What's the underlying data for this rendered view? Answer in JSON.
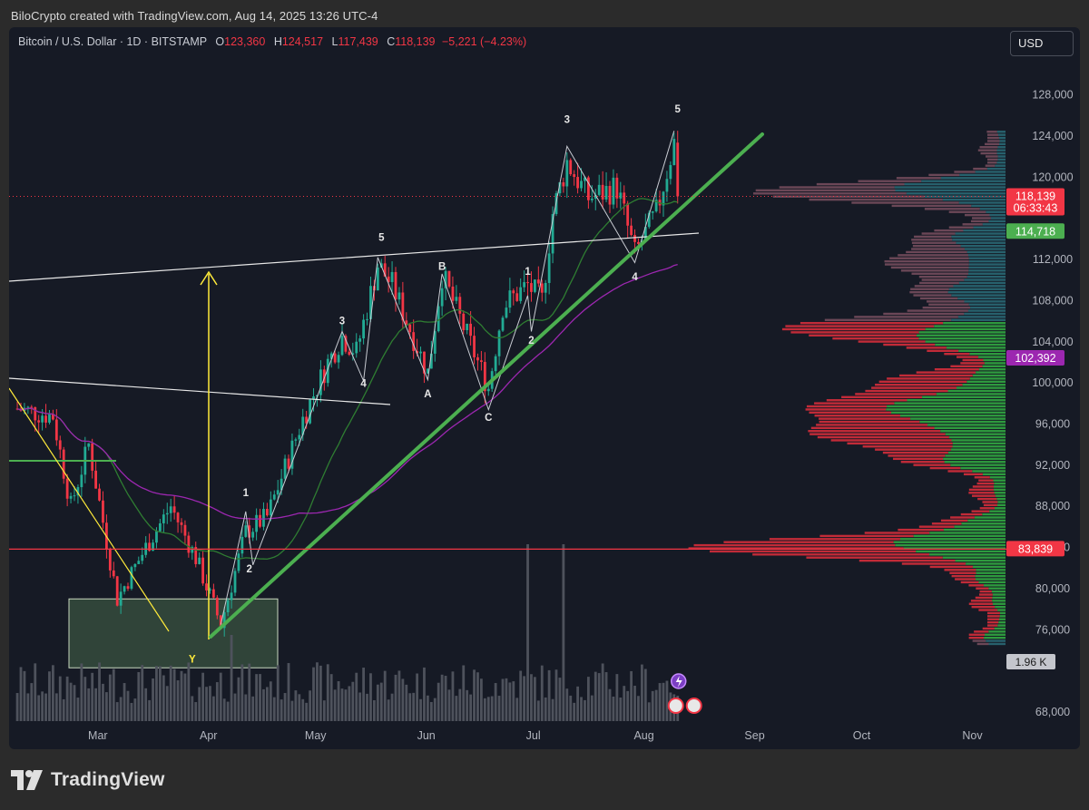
{
  "header": {
    "credit": "BiloCrypto created with TradingView.com, Aug 14, 2025 13:26 UTC-4"
  },
  "legend": {
    "symbol": "Bitcoin / U.S. Dollar · 1D · BITSTAMP",
    "open_label": "O",
    "open": "123,360",
    "high_label": "H",
    "high": "124,517",
    "low_label": "L",
    "low": "117,439",
    "close_label": "C",
    "close": "118,139",
    "change": "−5,221 (−4.23%)"
  },
  "currency_button": "USD",
  "brand": {
    "name": "TradingView",
    "logo_icon": "tradingview-logo-icon"
  },
  "icons": {
    "lightning": "lightning-event-icon",
    "flag": "us-flag-event-icon"
  },
  "colors": {
    "background": "#161a25",
    "up": "#22ab94",
    "down": "#f23645",
    "ma_fast": "#2f7d32",
    "ma_slow": "#9c27b0",
    "trendline": "#4caf50",
    "resistance": "#ffffff",
    "support_h": "#f23645",
    "target": "#ffeb3b"
  },
  "chart_data": {
    "type": "candlestick",
    "title": "",
    "y_axis": {
      "ticks": [
        "128,000",
        "124,000",
        "120,000",
        "112,000",
        "108,000",
        "104,000",
        "100,000",
        "96,000",
        "92,000",
        "88,000",
        "84,000",
        "80,000",
        "76,000",
        "68,000"
      ],
      "ylim": [
        66000,
        131000
      ],
      "position": "right"
    },
    "x_axis": {
      "ticks": [
        "Mar",
        "Apr",
        "May",
        "Jun",
        "Jul",
        "Aug",
        "Sep",
        "Oct",
        "Nov"
      ],
      "range": [
        "2025-02-10",
        "2025-11-20"
      ]
    },
    "price_labels": [
      {
        "value": "118,139",
        "sub": "06:33:43",
        "color": "#f23645",
        "kind": "last-price"
      },
      {
        "value": "114,718",
        "color": "#4caf50",
        "kind": "ma-fast"
      },
      {
        "value": "102,392",
        "color": "#9c27b0",
        "kind": "ma-slow"
      },
      {
        "value": "83,839",
        "color": "#f23645",
        "kind": "horizontal-line"
      }
    ],
    "volume_label": "1.96 K",
    "wave_labels": [
      {
        "text": "1",
        "date": "2025-04-15",
        "price": 89000
      },
      {
        "text": "2",
        "date": "2025-04-16",
        "price": 81600
      },
      {
        "text": "3",
        "date": "2025-05-12",
        "price": 105700
      },
      {
        "text": "4",
        "date": "2025-05-18",
        "price": 99600
      },
      {
        "text": "5",
        "date": "2025-05-23",
        "price": 113800
      },
      {
        "text": "A",
        "date": "2025-06-05",
        "price": 98600
      },
      {
        "text": "B",
        "date": "2025-06-09",
        "price": 111000
      },
      {
        "text": "C",
        "date": "2025-06-22",
        "price": 96300
      },
      {
        "text": "1",
        "date": "2025-07-03",
        "price": 110500
      },
      {
        "text": "2",
        "date": "2025-07-04",
        "price": 103800
      },
      {
        "text": "3",
        "date": "2025-07-14",
        "price": 125300
      },
      {
        "text": "4",
        "date": "2025-08-02",
        "price": 110000
      },
      {
        "text": "5",
        "date": "2025-08-14",
        "price": 126300
      },
      {
        "text": "Y",
        "date": "2025-03-31",
        "price": 72800
      }
    ],
    "lines": {
      "last_price": 118139,
      "horizontal_support": 83839
    }
  }
}
